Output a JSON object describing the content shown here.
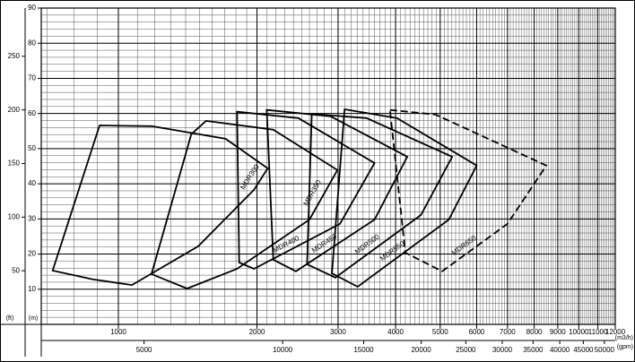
{
  "chart_data": {
    "type": "outline",
    "xscale": "log",
    "xlim": [
      680,
      12000
    ],
    "xticks": [
      1000,
      2000,
      3000,
      4000,
      5000,
      6000,
      7000,
      8000,
      9000,
      10000,
      11000,
      12000
    ],
    "xlabel": "(m3/h)",
    "x2lim": [
      2990,
      52800
    ],
    "x2ticks": [
      5000,
      10000,
      15000,
      20000,
      25000,
      30000,
      35000,
      40000,
      45000,
      50000
    ],
    "x2label": "(gpm)",
    "ylim": [
      0,
      90
    ],
    "yticks": [
      10,
      20,
      30,
      40,
      50,
      60,
      70,
      80,
      90
    ],
    "ylabel": "(m)",
    "y2lim": [
      0,
      295
    ],
    "y2ticks": [
      50,
      100,
      150,
      200,
      250
    ],
    "y2label": "(ft)",
    "grid": true,
    "x_minor_step": 100,
    "y_minor_step": 2,
    "series": [
      {
        "name": "MDR300",
        "color": "#000000",
        "dashed": false,
        "x": [
          910,
          1180,
          1710,
          2110,
          1970,
          1490,
          1070,
          880,
          720
        ],
        "values": [
          56.6,
          56.4,
          52.8,
          44.4,
          38.3,
          22.2,
          11.2,
          12.8,
          15.3
        ]
      },
      {
        "name": "MDR350",
        "color": "#000000",
        "dashed": false,
        "x": [
          1440,
          1550,
          2170,
          2990,
          2600,
          1810,
          1410,
          1180
        ],
        "values": [
          54.1,
          57.9,
          55.4,
          43.9,
          29.8,
          15.8,
          10.2,
          14.3
        ]
      },
      {
        "name": "MDR400",
        "color": "#000000",
        "dashed": false,
        "x": [
          1810,
          2460,
          3600,
          3030,
          1970,
          1830
        ],
        "values": [
          60.5,
          58.7,
          45.9,
          28.6,
          15.8,
          17.6
        ]
      },
      {
        "name": "MDR450",
        "color": "#000000",
        "dashed": false,
        "x": [
          2100,
          2890,
          4240,
          3600,
          2430,
          2170
        ],
        "values": [
          61.0,
          59.2,
          47.7,
          29.8,
          15.1,
          18.4
        ]
      },
      {
        "name": "MDR500",
        "color": "#000000",
        "dashed": false,
        "x": [
          2630,
          3460,
          5310,
          4540,
          2960,
          2570
        ],
        "values": [
          59.9,
          58.7,
          47.7,
          31.1,
          13.3,
          17.1
        ]
      },
      {
        "name": "MDR550",
        "color": "#000000",
        "dashed": false,
        "x": [
          3100,
          4030,
          6000,
          5220,
          3310,
          2910
        ],
        "values": [
          61.2,
          58.7,
          45.2,
          29.8,
          10.7,
          14.5
        ]
      },
      {
        "name": "MDR650",
        "color": "#000000",
        "dashed": true,
        "x": [
          3890,
          4880,
          8500,
          7000,
          5050,
          4200
        ],
        "values": [
          61.0,
          59.7,
          45.2,
          28.6,
          15.1,
          20.4
        ]
      }
    ]
  }
}
